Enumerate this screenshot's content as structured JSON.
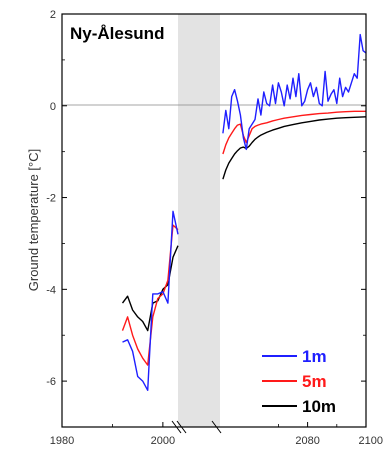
{
  "chart_data": {
    "type": "line",
    "title": "Ny-Ålesund",
    "xlabel": "",
    "ylabel": "Ground temperature [°C]",
    "ylim": [
      -7,
      2
    ],
    "yticks": [
      "2",
      "0",
      "-2",
      "-4",
      "-6"
    ],
    "ytick_values": [
      2,
      0,
      -2,
      -4,
      -6
    ],
    "xticks": [
      "1980",
      "2000",
      "2080",
      "2100"
    ],
    "x_axis_break": true,
    "shaded_gap": true,
    "zero_line": true,
    "legend_position": "bottom-right",
    "series": [
      {
        "name": "1m",
        "color": "#1f1fff",
        "period1": {
          "x": [
            1992,
            1993,
            1994,
            1995,
            1996,
            1997,
            1998,
            1999,
            2000,
            2001,
            2002,
            2003
          ],
          "y": [
            -5.15,
            -5.1,
            -5.35,
            -5.9,
            -6.0,
            -6.2,
            -4.1,
            -4.1,
            -4.05,
            -4.3,
            -2.3,
            -2.8
          ]
        },
        "period2": {
          "x": [
            2051,
            2052,
            2053,
            2054,
            2055,
            2056,
            2057,
            2058,
            2059,
            2060,
            2061,
            2062,
            2063,
            2064,
            2065,
            2066,
            2067,
            2068,
            2069,
            2070,
            2071,
            2072,
            2073,
            2074,
            2075,
            2076,
            2077,
            2078,
            2079,
            2080,
            2081,
            2082,
            2083,
            2084,
            2085,
            2086,
            2087,
            2088,
            2089,
            2090,
            2091,
            2092,
            2093,
            2094,
            2095,
            2096,
            2097,
            2098,
            2099,
            2100
          ],
          "y": [
            -0.6,
            -0.1,
            -0.5,
            0.2,
            0.35,
            0.1,
            -0.2,
            -0.7,
            -0.95,
            -0.5,
            -0.4,
            -0.3,
            0.15,
            -0.2,
            0.3,
            0.05,
            0.0,
            0.45,
            0.05,
            0.5,
            0.3,
            0.0,
            0.45,
            0.15,
            0.6,
            0.2,
            0.7,
            0.0,
            0.1,
            0.35,
            0.5,
            0.2,
            0.4,
            0.05,
            0.0,
            0.75,
            0.1,
            0.25,
            0.35,
            0.05,
            0.6,
            0.2,
            0.4,
            0.3,
            0.5,
            0.7,
            0.6,
            1.55,
            1.2,
            1.15
          ]
        }
      },
      {
        "name": "5m",
        "color": "#ff1a1a",
        "period1": {
          "x": [
            1992,
            1993,
            1994,
            1995,
            1996,
            1997,
            1998,
            1999,
            2000,
            2001,
            2002,
            2003
          ],
          "y": [
            -4.9,
            -4.6,
            -5.0,
            -5.3,
            -5.5,
            -5.65,
            -4.6,
            -4.2,
            -4.1,
            -3.8,
            -2.6,
            -2.7
          ]
        },
        "period2": {
          "x": [
            2051,
            2052,
            2053,
            2054,
            2055,
            2056,
            2057,
            2058,
            2059,
            2060,
            2061,
            2062,
            2063,
            2064,
            2066,
            2068,
            2070,
            2072,
            2075,
            2078,
            2081,
            2084,
            2087,
            2090,
            2093,
            2096,
            2100
          ],
          "y": [
            -1.05,
            -0.85,
            -0.7,
            -0.6,
            -0.5,
            -0.42,
            -0.4,
            -0.65,
            -0.8,
            -0.65,
            -0.5,
            -0.45,
            -0.42,
            -0.4,
            -0.37,
            -0.33,
            -0.3,
            -0.27,
            -0.24,
            -0.21,
            -0.19,
            -0.17,
            -0.16,
            -0.14,
            -0.13,
            -0.12,
            -0.12
          ]
        }
      },
      {
        "name": "10m",
        "color": "#000000",
        "period1": {
          "x": [
            1992,
            1993,
            1994,
            1995,
            1996,
            1997,
            1998,
            1999,
            2000,
            2001,
            2002,
            2003
          ],
          "y": [
            -4.3,
            -4.15,
            -4.45,
            -4.6,
            -4.7,
            -4.9,
            -4.3,
            -4.25,
            -4.0,
            -3.9,
            -3.3,
            -3.05
          ]
        },
        "period2": {
          "x": [
            2051,
            2052,
            2053,
            2054,
            2055,
            2056,
            2057,
            2058,
            2059,
            2060,
            2061,
            2062,
            2063,
            2064,
            2066,
            2068,
            2070,
            2072,
            2075,
            2078,
            2081,
            2084,
            2087,
            2090,
            2093,
            2096,
            2100
          ],
          "y": [
            -1.6,
            -1.4,
            -1.25,
            -1.15,
            -1.05,
            -0.98,
            -0.92,
            -0.9,
            -0.93,
            -0.88,
            -0.8,
            -0.73,
            -0.68,
            -0.64,
            -0.58,
            -0.53,
            -0.49,
            -0.45,
            -0.41,
            -0.37,
            -0.34,
            -0.31,
            -0.29,
            -0.27,
            -0.26,
            -0.25,
            -0.24
          ]
        }
      }
    ]
  }
}
